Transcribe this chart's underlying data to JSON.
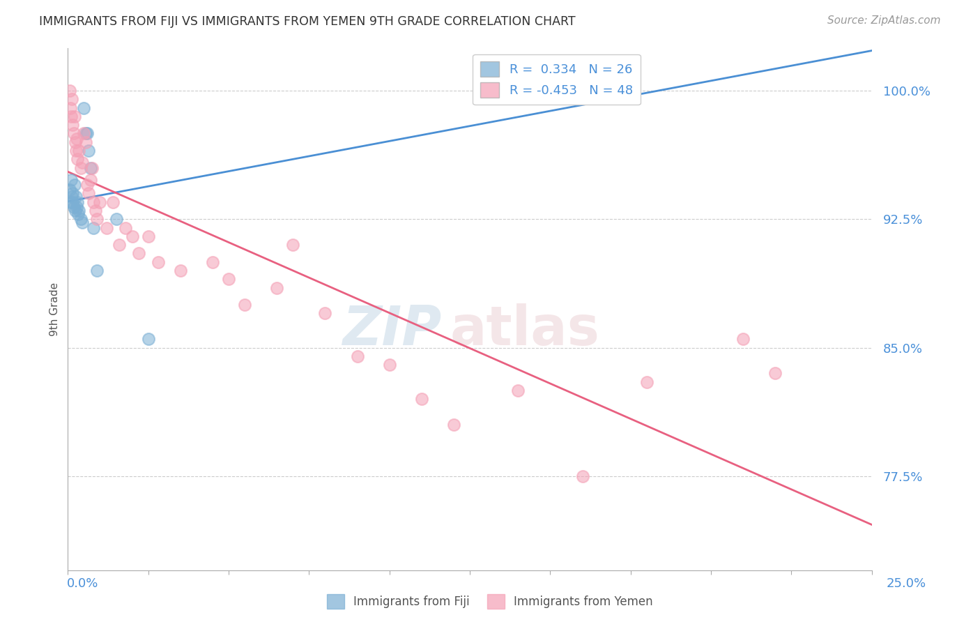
{
  "title": "IMMIGRANTS FROM FIJI VS IMMIGRANTS FROM YEMEN 9TH GRADE CORRELATION CHART",
  "source": "Source: ZipAtlas.com",
  "ylabel": "9th Grade",
  "yticks": [
    100.0,
    92.5,
    85.0,
    77.5
  ],
  "ytick_labels": [
    "100.0%",
    "92.5%",
    "85.0%",
    "77.5%"
  ],
  "xlim": [
    0.0,
    25.0
  ],
  "ylim": [
    72.0,
    102.5
  ],
  "fiji_color": "#7bafd4",
  "yemen_color": "#f4a0b5",
  "fiji_line_color": "#4a8fd4",
  "yemen_line_color": "#e86080",
  "fiji_R": 0.334,
  "fiji_N": 26,
  "yemen_R": -0.453,
  "yemen_N": 48,
  "fiji_scatter_x": [
    0.05,
    0.08,
    0.1,
    0.12,
    0.15,
    0.15,
    0.18,
    0.2,
    0.22,
    0.25,
    0.28,
    0.3,
    0.32,
    0.35,
    0.4,
    0.45,
    0.5,
    0.55,
    0.6,
    0.65,
    0.7,
    0.8,
    0.9,
    1.5,
    2.5,
    14.0
  ],
  "fiji_scatter_y": [
    94.2,
    93.5,
    94.8,
    93.8,
    94.0,
    93.5,
    93.2,
    94.5,
    93.0,
    93.8,
    93.2,
    93.5,
    92.8,
    93.0,
    92.5,
    92.3,
    99.0,
    97.5,
    97.5,
    96.5,
    95.5,
    92.0,
    89.5,
    92.5,
    85.5,
    100.0
  ],
  "yemen_scatter_x": [
    0.05,
    0.08,
    0.1,
    0.12,
    0.15,
    0.18,
    0.2,
    0.22,
    0.25,
    0.28,
    0.3,
    0.35,
    0.4,
    0.45,
    0.5,
    0.55,
    0.6,
    0.65,
    0.7,
    0.75,
    0.8,
    0.85,
    0.9,
    1.0,
    1.2,
    1.4,
    1.6,
    1.8,
    2.0,
    2.2,
    2.5,
    2.8,
    3.5,
    4.5,
    5.0,
    5.5,
    6.5,
    7.0,
    8.0,
    9.0,
    10.0,
    11.0,
    12.0,
    14.0,
    16.0,
    18.0,
    21.0,
    22.0
  ],
  "yemen_scatter_y": [
    100.0,
    99.0,
    98.5,
    99.5,
    98.0,
    97.5,
    98.5,
    97.0,
    96.5,
    97.2,
    96.0,
    96.5,
    95.5,
    95.8,
    97.5,
    97.0,
    94.5,
    94.0,
    94.8,
    95.5,
    93.5,
    93.0,
    92.5,
    93.5,
    92.0,
    93.5,
    91.0,
    92.0,
    91.5,
    90.5,
    91.5,
    90.0,
    89.5,
    90.0,
    89.0,
    87.5,
    88.5,
    91.0,
    87.0,
    84.5,
    84.0,
    82.0,
    80.5,
    82.5,
    77.5,
    83.0,
    85.5,
    83.5
  ],
  "background_color": "#ffffff",
  "grid_color": "#cccccc",
  "title_color": "#333333",
  "axis_color": "#aaaaaa",
  "right_tick_color": "#4a90d9"
}
